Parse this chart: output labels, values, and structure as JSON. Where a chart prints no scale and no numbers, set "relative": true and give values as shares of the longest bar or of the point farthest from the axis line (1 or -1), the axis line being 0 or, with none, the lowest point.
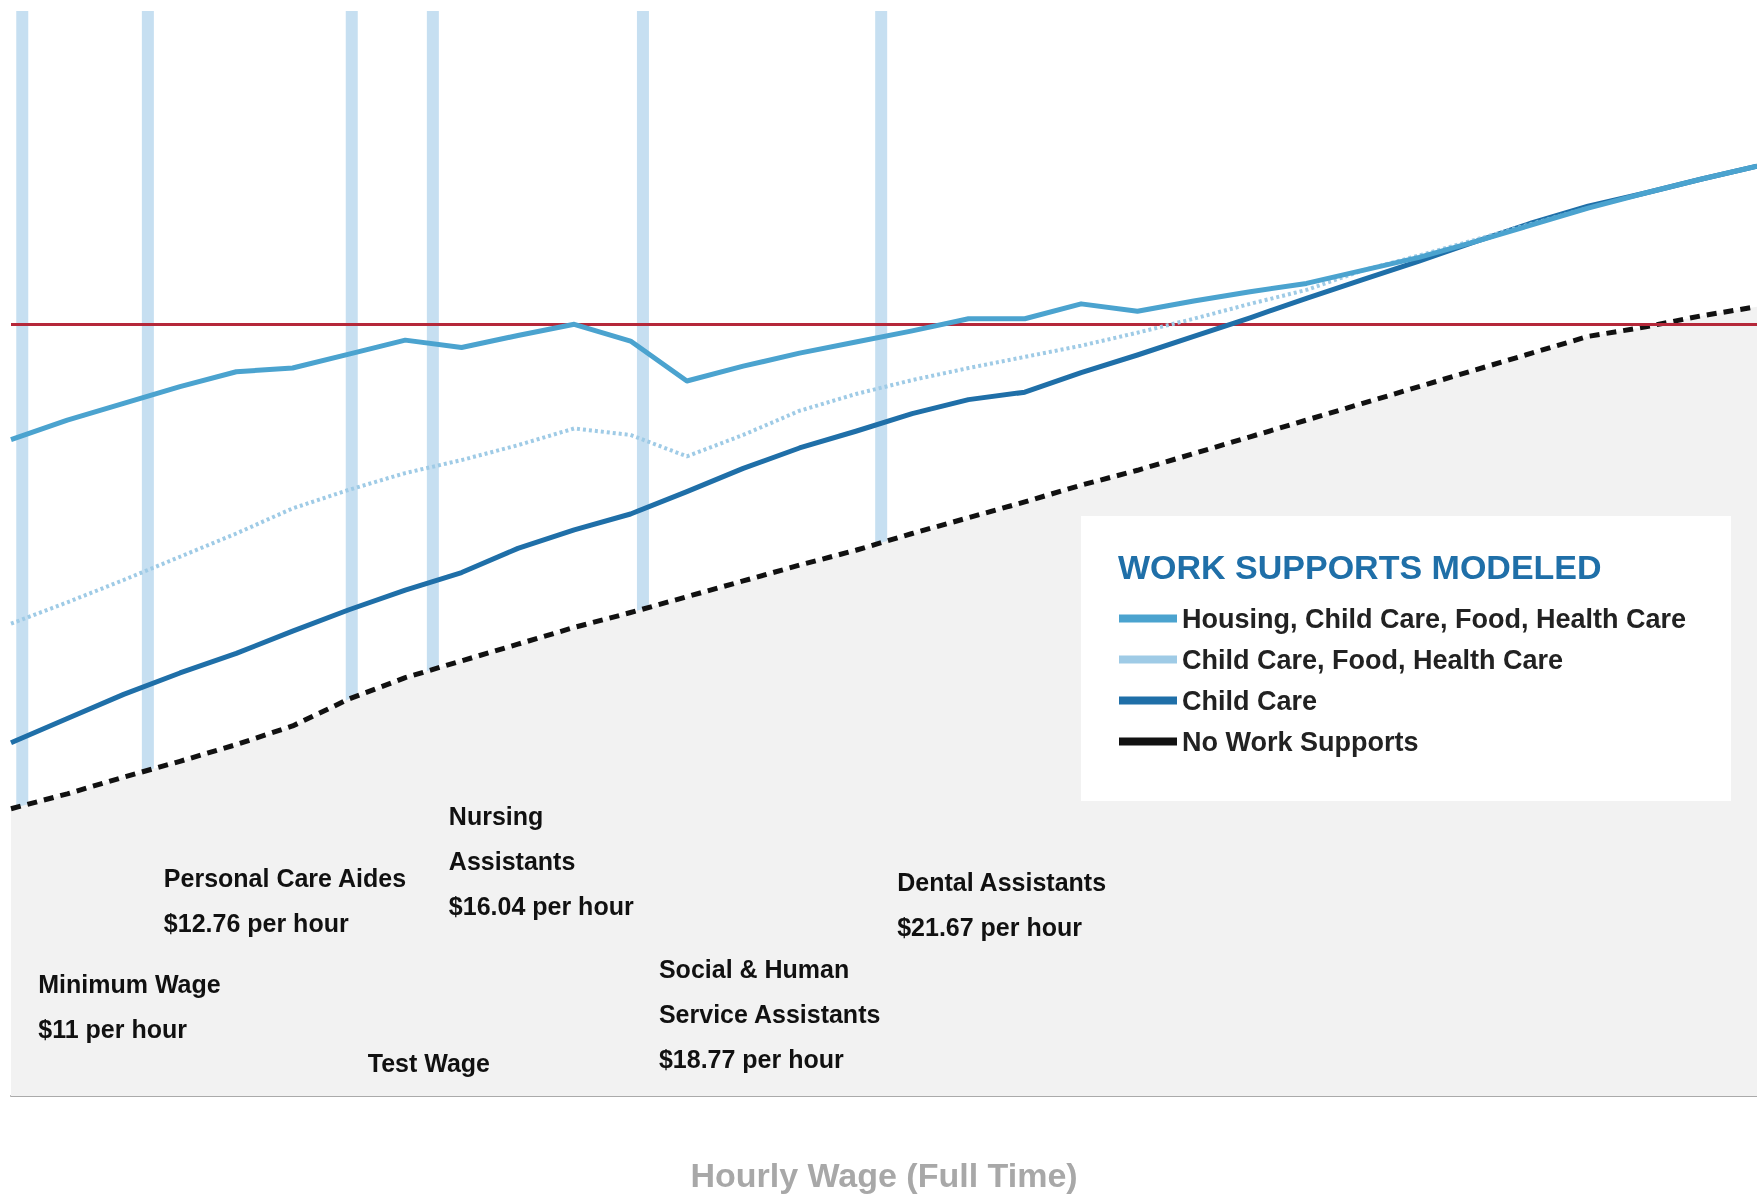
{
  "chart_data": {
    "type": "line",
    "relative": true,
    "xlabel": "Hourly Wage (Full Time)",
    "legend_title": "WORK SUPPORTS MODELED",
    "legend": "right",
    "marker": "none",
    "tick_labels": false,
    "categories": [
      null,
      null,
      null,
      null,
      null,
      null,
      null,
      null,
      null,
      null,
      null,
      null,
      null,
      null,
      null,
      null,
      null,
      null,
      null,
      null,
      null,
      null,
      null,
      null,
      null,
      null,
      null,
      null,
      null,
      null,
      null,
      null
    ],
    "series": [
      {
        "name": "Housing, Child Care, Food, Health Care",
        "color": "#4ba3cf",
        "line_style": "solid",
        "values": [
          0.706,
          0.727,
          0.745,
          0.763,
          0.779,
          0.783,
          0.798,
          0.813,
          0.805,
          0.818,
          0.83,
          0.812,
          0.769,
          0.785,
          0.799,
          0.811,
          0.823,
          0.836,
          0.836,
          0.852,
          0.844,
          0.855,
          0.865,
          0.874,
          0.888,
          0.902,
          0.919,
          0.937,
          0.955,
          0.971,
          0.986,
          1
        ]
      },
      {
        "name": "Child Care, Food, Health Care",
        "color": "#9fcbe6",
        "line_style": "dotted",
        "values": [
          0.508,
          0.531,
          0.555,
          0.58,
          0.605,
          0.632,
          0.652,
          0.67,
          0.684,
          0.7,
          0.718,
          0.711,
          0.688,
          0.711,
          0.737,
          0.755,
          0.77,
          0.783,
          0.795,
          0.807,
          0.821,
          0.836,
          0.852,
          0.867,
          0.888,
          0.904,
          0.921,
          0.938,
          0.955,
          null,
          null,
          null
        ]
      },
      {
        "name": "Child Care",
        "color": "#1f6fa8",
        "line_style": "solid",
        "values": [
          0.38,
          0.406,
          0.432,
          0.455,
          0.476,
          0.5,
          0.523,
          0.544,
          0.563,
          0.589,
          0.609,
          0.626,
          0.65,
          0.675,
          0.697,
          0.715,
          0.734,
          0.749,
          0.757,
          0.778,
          0.797,
          0.817,
          0.837,
          0.858,
          0.878,
          0.898,
          0.919,
          0.939,
          0.957,
          0.971,
          0.986,
          1
        ]
      },
      {
        "name": "No Work Supports",
        "type": "area",
        "color": "#111111",
        "line_style": "dashed",
        "values": [
          0.309,
          0.325,
          0.343,
          0.36,
          0.378,
          0.398,
          0.427,
          0.45,
          0.468,
          0.486,
          0.504,
          0.52,
          0.537,
          0.554,
          0.571,
          0.587,
          0.605,
          0.622,
          0.639,
          0.657,
          0.673,
          0.691,
          0.709,
          0.727,
          0.745,
          0.763,
          0.781,
          0.799,
          0.817,
          0.827,
          0.839,
          0.849
        ]
      }
    ],
    "ref_lines": [
      {
        "axis": "y",
        "value": 0.829,
        "color": "#b5283a",
        "line_style": "solid"
      }
    ],
    "annotations": [
      "Minimum Wage\n$11 per hour",
      "Personal Care Aides\n$12.76 per hour",
      "Test Wage",
      "Nursing\nAssistants\n$16.04 per hour",
      "Social & Human\nService Assistants\n$18.77 per hour",
      "Dental Assistants\n$21.67 per hour"
    ]
  }
}
